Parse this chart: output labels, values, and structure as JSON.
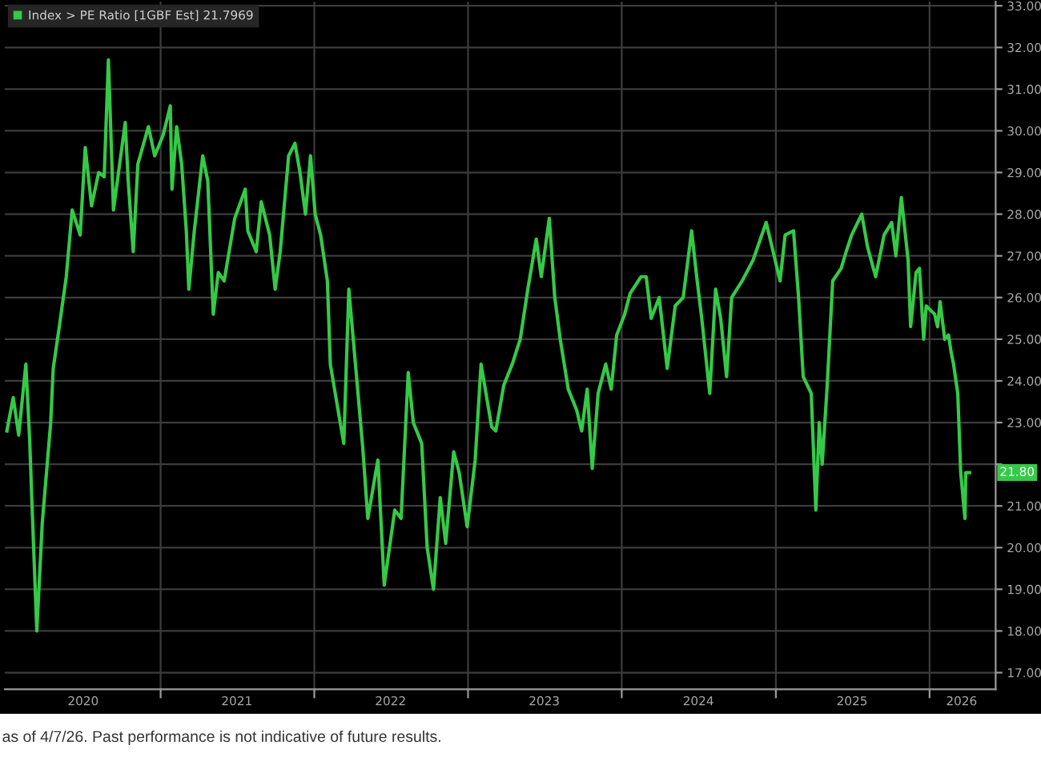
{
  "chart_data": {
    "type": "line",
    "series": [
      {
        "name": "Index > PE Ratio [1GBF Est] 21.7969",
        "color": "#35c947",
        "x": [
          "2020-01-02",
          "2020-01-17",
          "2020-01-30",
          "2020-02-16",
          "2020-02-25",
          "2020-03-01",
          "2020-03-13",
          "2020-03-26",
          "2020-04-15",
          "2020-04-21",
          "2020-05-04",
          "2020-05-22",
          "2020-06-05",
          "2020-06-24",
          "2020-07-06",
          "2020-07-21",
          "2020-08-07",
          "2020-08-20",
          "2020-08-30",
          "2020-09-11",
          "2020-09-27",
          "2020-10-09",
          "2020-10-16",
          "2020-10-28",
          "2020-11-08",
          "2020-12-03",
          "2020-12-18",
          "2021-01-07",
          "2021-01-24",
          "2021-01-28",
          "2021-02-08",
          "2021-02-20",
          "2021-03-03",
          "2021-03-09",
          "2021-03-22",
          "2021-04-11",
          "2021-04-23",
          "2021-05-06",
          "2021-05-18",
          "2021-06-01",
          "2021-06-26",
          "2021-07-21",
          "2021-07-27",
          "2021-08-16",
          "2021-08-28",
          "2021-09-17",
          "2021-09-30",
          "2021-10-12",
          "2021-11-01",
          "2021-11-16",
          "2021-11-28",
          "2021-12-11",
          "2021-12-23",
          "2022-01-03",
          "2022-01-16",
          "2022-02-01",
          "2022-02-08",
          "2022-02-23",
          "2022-03-12",
          "2022-03-24",
          "2022-04-13",
          "2022-04-26",
          "2022-05-08",
          "2022-06-01",
          "2022-06-16",
          "2022-07-11",
          "2022-07-26",
          "2022-08-12",
          "2022-08-24",
          "2022-09-13",
          "2022-09-26",
          "2022-10-11",
          "2022-10-27",
          "2022-11-09",
          "2022-11-28",
          "2022-12-11",
          "2022-12-30",
          "2023-01-18",
          "2023-02-01",
          "2023-02-26",
          "2023-03-08",
          "2023-03-27",
          "2023-04-16",
          "2023-05-05",
          "2023-05-23",
          "2023-06-12",
          "2023-06-24",
          "2023-07-13",
          "2023-07-26",
          "2023-08-08",
          "2023-08-27",
          "2023-09-16",
          "2023-09-28",
          "2023-10-11",
          "2023-10-23",
          "2023-11-06",
          "2023-11-24",
          "2023-12-07",
          "2023-12-20",
          "2024-01-08",
          "2024-01-21",
          "2024-02-16",
          "2024-02-28",
          "2024-03-11",
          "2024-03-30",
          "2024-04-18",
          "2024-05-07",
          "2024-05-26",
          "2024-06-15",
          "2024-06-27",
          "2024-07-09",
          "2024-07-28",
          "2024-08-11",
          "2024-08-23",
          "2024-09-06",
          "2024-09-18",
          "2024-10-13",
          "2024-11-08",
          "2024-12-09",
          "2024-12-28",
          "2025-01-11",
          "2025-01-23",
          "2025-02-12",
          "2025-02-24",
          "2025-03-07",
          "2025-03-26",
          "2025-04-06",
          "2025-04-14",
          "2025-04-21",
          "2025-05-03",
          "2025-05-16",
          "2025-06-05",
          "2025-06-17",
          "2025-06-30",
          "2025-07-24",
          "2025-08-07",
          "2025-08-26",
          "2025-09-15",
          "2025-10-03",
          "2025-10-13",
          "2025-10-26",
          "2025-11-11",
          "2025-11-17",
          "2025-11-30",
          "2025-12-08",
          "2025-12-18",
          "2025-12-24",
          "2026-01-13",
          "2026-01-20",
          "2026-01-26",
          "2026-02-06",
          "2026-02-15",
          "2026-02-21",
          "2026-02-27",
          "2026-03-09",
          "2026-03-16",
          "2026-03-26",
          "2026-03-28",
          "2026-04-06"
        ],
        "values": [
          22.8,
          23.6,
          22.7,
          24.4,
          22.6,
          21.2,
          18.0,
          20.6,
          23.0,
          24.3,
          25.2,
          26.5,
          28.1,
          27.5,
          29.6,
          28.2,
          29.0,
          28.9,
          31.7,
          28.1,
          29.3,
          30.2,
          28.8,
          27.1,
          29.2,
          30.1,
          29.4,
          29.9,
          30.6,
          28.6,
          30.1,
          29.2,
          27.6,
          26.2,
          27.6,
          29.4,
          28.8,
          25.6,
          26.6,
          26.4,
          27.9,
          28.6,
          27.6,
          27.1,
          28.3,
          27.5,
          26.2,
          27.1,
          29.4,
          29.7,
          29.0,
          28.0,
          29.4,
          28.0,
          27.5,
          26.4,
          24.4,
          23.5,
          22.5,
          26.2,
          23.9,
          22.4,
          20.7,
          22.1,
          19.1,
          20.9,
          20.7,
          24.2,
          23.0,
          22.5,
          20.0,
          19.0,
          21.2,
          20.1,
          22.3,
          21.8,
          20.5,
          22.1,
          24.4,
          22.9,
          22.8,
          23.9,
          24.4,
          25.0,
          26.2,
          27.4,
          26.5,
          27.9,
          26.0,
          25.0,
          23.8,
          23.3,
          22.8,
          23.8,
          21.9,
          23.7,
          24.4,
          23.8,
          25.1,
          25.6,
          26.1,
          26.5,
          26.5,
          25.5,
          26.0,
          24.3,
          25.8,
          26.0,
          27.6,
          26.5,
          25.5,
          23.7,
          26.2,
          25.5,
          24.1,
          26.0,
          26.4,
          26.9,
          27.8,
          27.0,
          26.4,
          27.5,
          27.6,
          26.0,
          24.1,
          23.7,
          20.9,
          23.0,
          22.0,
          23.9,
          26.4,
          26.7,
          27.1,
          27.5,
          28.0,
          27.2,
          26.5,
          27.5,
          27.8,
          27.0,
          28.4,
          26.9,
          25.3,
          26.6,
          26.7,
          25.0,
          25.8,
          25.6,
          25.3,
          25.9,
          25.0,
          25.1,
          24.7,
          24.4,
          23.7,
          21.8,
          20.7,
          21.8,
          21.8
        ]
      }
    ],
    "xlim": [
      "2019-12-28",
      "2026-06-07"
    ],
    "xticks": [
      {
        "value": "2020-07-01",
        "label": "2020"
      },
      {
        "value": "2021-01-01",
        "label": null
      },
      {
        "value": "2021-07-01",
        "label": "2021"
      },
      {
        "value": "2022-01-01",
        "label": null
      },
      {
        "value": "2022-07-01",
        "label": "2022"
      },
      {
        "value": "2023-01-01",
        "label": null
      },
      {
        "value": "2023-07-01",
        "label": "2023"
      },
      {
        "value": "2024-01-01",
        "label": null
      },
      {
        "value": "2024-07-01",
        "label": "2024"
      },
      {
        "value": "2025-01-01",
        "label": null
      },
      {
        "value": "2025-07-01",
        "label": "2025"
      },
      {
        "value": "2026-01-01",
        "label": null
      },
      {
        "value": "2026-03-18",
        "label": "2026"
      }
    ],
    "ylim": [
      16.6,
      33.1
    ],
    "yticks": [
      {
        "value": 17,
        "label": "17.00"
      },
      {
        "value": 18,
        "label": "18.00"
      },
      {
        "value": 19,
        "label": "19.00"
      },
      {
        "value": 20,
        "label": "20.00"
      },
      {
        "value": 21,
        "label": "21.00"
      },
      {
        "value": 22,
        "label": null
      },
      {
        "value": 23,
        "label": "23.00"
      },
      {
        "value": 24,
        "label": "24.00"
      },
      {
        "value": 25,
        "label": "25.00"
      },
      {
        "value": 26,
        "label": "26.00"
      },
      {
        "value": 27,
        "label": "27.00"
      },
      {
        "value": 28,
        "label": "28.00"
      },
      {
        "value": 29,
        "label": "29.00"
      },
      {
        "value": 30,
        "label": "30.00"
      },
      {
        "value": 31,
        "label": "31.00"
      },
      {
        "value": 32,
        "label": "32.00"
      },
      {
        "value": 33,
        "label": "33.00"
      }
    ],
    "grid": true,
    "legend": "top left",
    "line_style": "solid",
    "annotations": [
      {
        "text": "21.80",
        "x": "2026-04-06",
        "y": 21.8
      },
      "as of 4/7/26. Past performance is not indicative of future results."
    ]
  }
}
